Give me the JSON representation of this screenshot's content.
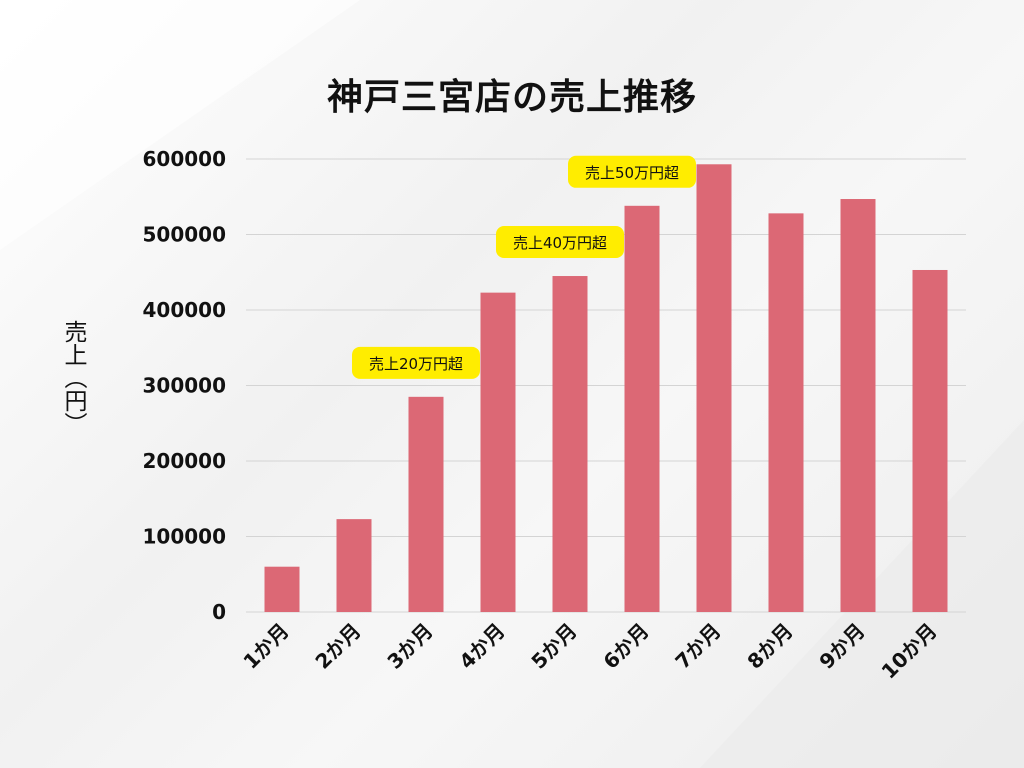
{
  "chart_data": {
    "type": "bar",
    "title": "神戸三宮店の売上推移",
    "xlabel": "",
    "ylabel": "売上（円）",
    "categories": [
      "1か月",
      "2か月",
      "3か月",
      "4か月",
      "5か月",
      "6か月",
      "7か月",
      "8か月",
      "9か月",
      "10か月"
    ],
    "values": [
      60000,
      123000,
      285000,
      423000,
      445000,
      538000,
      593000,
      528000,
      547000,
      453000
    ],
    "ylim": [
      0,
      600000
    ],
    "yticks": [
      "0",
      "100000",
      "200000",
      "300000",
      "400000",
      "500000",
      "600000"
    ],
    "grid": true,
    "bar_color": "#dc6875",
    "annotations": [
      {
        "text": "売上20万円超",
        "category": "3か月"
      },
      {
        "text": "売上40万円超",
        "category": "5か月"
      },
      {
        "text": "売上50万円超",
        "category": "6か月"
      }
    ],
    "annotation_color": "#ffed00"
  }
}
